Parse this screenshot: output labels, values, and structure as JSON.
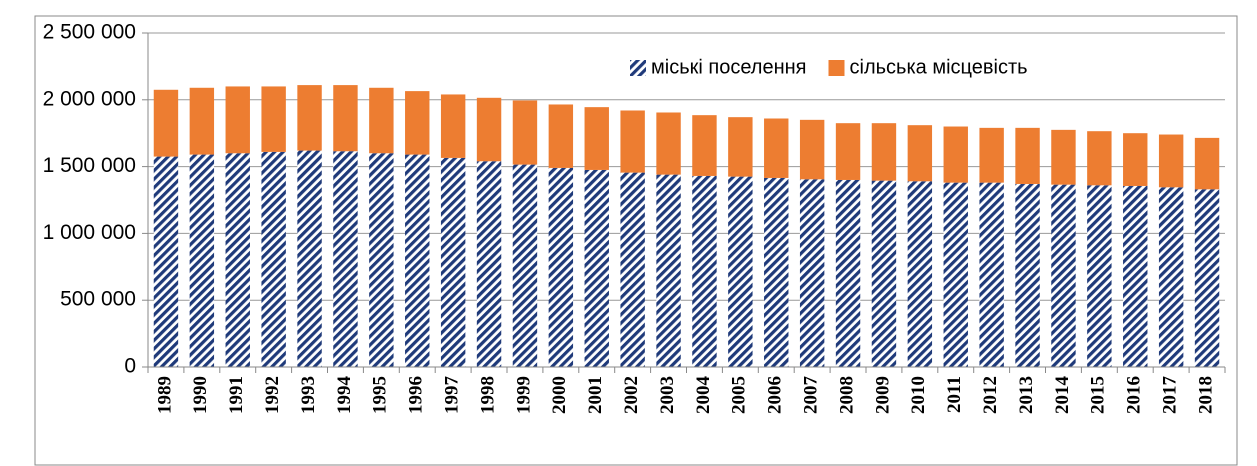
{
  "chart_data": {
    "type": "stacked_bar",
    "categories": [
      "1989",
      "1990",
      "1991",
      "1992",
      "1993",
      "1994",
      "1995",
      "1996",
      "1997",
      "1998",
      "1999",
      "2000",
      "2001",
      "2002",
      "2003",
      "2004",
      "2005",
      "2006",
      "2007",
      "2008",
      "2009",
      "2010",
      "2011",
      "2012",
      "2013",
      "2014",
      "2015",
      "2016",
      "2017",
      "2018"
    ],
    "series": [
      {
        "name": "міські поселення",
        "color": "#1f3a7a",
        "pattern": "diagonal-hatch",
        "values": [
          1575000,
          1590000,
          1600000,
          1610000,
          1620000,
          1615000,
          1600000,
          1590000,
          1565000,
          1540000,
          1515000,
          1490000,
          1475000,
          1455000,
          1440000,
          1430000,
          1425000,
          1415000,
          1405000,
          1400000,
          1395000,
          1390000,
          1380000,
          1380000,
          1370000,
          1365000,
          1360000,
          1355000,
          1345000,
          1330000
        ]
      },
      {
        "name": "сільська місцевість",
        "color": "#ed7d31",
        "values": [
          500000,
          500000,
          500000,
          490000,
          490000,
          495000,
          490000,
          475000,
          475000,
          475000,
          480000,
          475000,
          470000,
          465000,
          465000,
          455000,
          445000,
          445000,
          445000,
          425000,
          430000,
          420000,
          420000,
          410000,
          420000,
          410000,
          405000,
          395000,
          395000,
          385000
        ]
      }
    ],
    "ylim": [
      0,
      2500000
    ],
    "yticks": [
      0,
      {
        "value": 500000,
        "label": "500 000"
      },
      {
        "value": 1000000,
        "label": "1 000 000"
      },
      {
        "value": 1500000,
        "label": "1 500 000"
      },
      {
        "value": 2000000,
        "label": "2 000 000"
      },
      {
        "value": 2500000,
        "label": "2 500 000"
      }
    ],
    "grid": true,
    "legend": "top-right"
  }
}
